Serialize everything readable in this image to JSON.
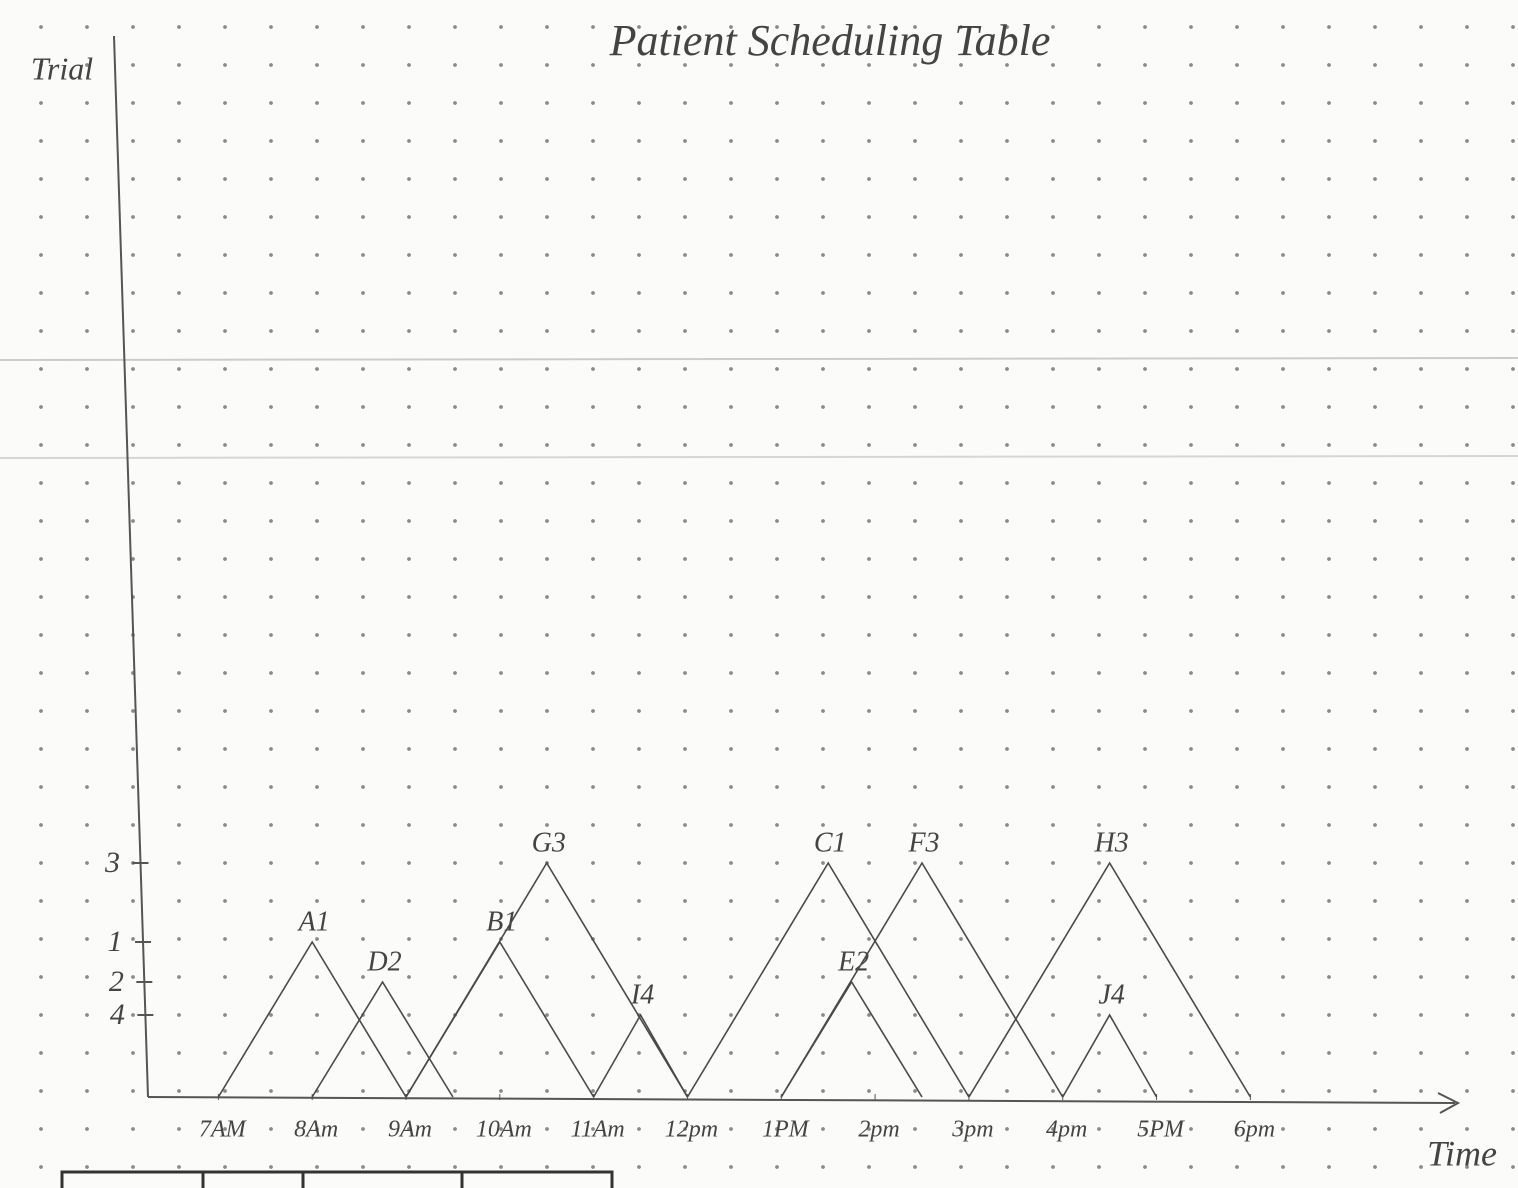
{
  "chart_data": {
    "type": "triangle",
    "title": "Patient Scheduling Table",
    "y_label": "Trial",
    "x_label": "Time",
    "xlim": [
      6.25,
      20
    ],
    "xticks": [
      {
        "value": 7,
        "label": "7AM"
      },
      {
        "value": 8,
        "label": "8Am"
      },
      {
        "value": 9,
        "label": "9Am"
      },
      {
        "value": 10,
        "label": "10Am"
      },
      {
        "value": 11,
        "label": "11Am"
      },
      {
        "value": 12,
        "label": "12pm"
      },
      {
        "value": 13,
        "label": "1PM"
      },
      {
        "value": 14,
        "label": "2pm"
      },
      {
        "value": 15,
        "label": "3pm"
      },
      {
        "value": 16,
        "label": "4pm"
      },
      {
        "value": 17,
        "label": "5PM"
      },
      {
        "value": 18,
        "label": "6pm"
      }
    ],
    "y_categories": [
      "4",
      "2",
      "1",
      "3"
    ],
    "color": "#4a4a4a",
    "series": [
      {
        "name": "A1",
        "start": 7,
        "peak": 8,
        "end": 9,
        "level": "1"
      },
      {
        "name": "D2",
        "start": 8,
        "peak": 8.75,
        "end": 9.5,
        "level": "2"
      },
      {
        "name": "B1",
        "start": 9,
        "peak": 10,
        "end": 11,
        "level": "1"
      },
      {
        "name": "G3",
        "start": 9,
        "peak": 10.5,
        "end": 12,
        "level": "3"
      },
      {
        "name": "I4",
        "start": 11,
        "peak": 11.5,
        "end": 12,
        "level": "4"
      },
      {
        "name": "C1",
        "start": 12,
        "peak": 13.5,
        "end": 15,
        "level": "3"
      },
      {
        "name": "E2",
        "start": 13,
        "peak": 13.75,
        "end": 14.5,
        "level": "2"
      },
      {
        "name": "F3",
        "start": 13,
        "peak": 14.5,
        "end": 16,
        "level": "3"
      },
      {
        "name": "H3",
        "start": 15,
        "peak": 16.5,
        "end": 18,
        "level": "3"
      },
      {
        "name": "J4",
        "start": 16,
        "peak": 16.5,
        "end": 17,
        "level": "4"
      }
    ]
  }
}
